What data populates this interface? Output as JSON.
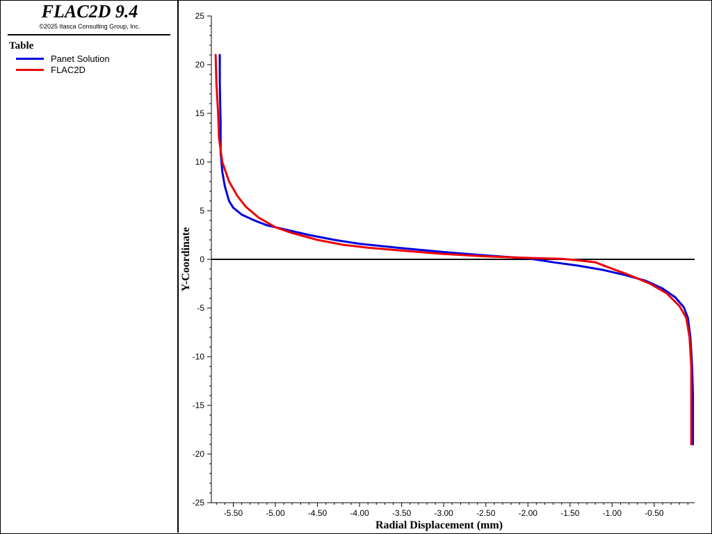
{
  "app": {
    "title": "FLAC2D 9.4",
    "copyright": "©2025 Itasca Consulting Group, Inc."
  },
  "legend": {
    "title": "Table",
    "entries": [
      {
        "label": "Panet Solution",
        "color": "#0000dd"
      },
      {
        "label": "FLAC2D",
        "color": "#ee0000"
      }
    ]
  },
  "chart_data": {
    "type": "line",
    "title": "",
    "xlabel": "Radial Displacement (mm)",
    "ylabel": "Y-Coordinate",
    "xlim": [
      -5.76,
      -0.02
    ],
    "ylim": [
      -25,
      25
    ],
    "xticks": [
      -5.5,
      -5.0,
      -4.5,
      -4.0,
      -3.5,
      -3.0,
      -2.5,
      -2.0,
      -1.5,
      -1.0,
      -0.5
    ],
    "xtick_labels": [
      "-5.50",
      "-5.00",
      "-4.50",
      "-4.00",
      "-3.50",
      "-3.00",
      "-2.50",
      "-2.00",
      "-1.50",
      "-1.00",
      "-0.50"
    ],
    "yticks": [
      25,
      20,
      15,
      10,
      5,
      0,
      -5,
      -10,
      -15,
      -20,
      -25
    ],
    "ytick_labels": [
      "25",
      "20",
      "15",
      "10",
      "5",
      "0",
      "-5",
      "-10",
      "-15",
      "-20",
      "-25"
    ],
    "zero_line": 0,
    "series": [
      {
        "name": "Panet Solution",
        "color": "#0000dd",
        "points": [
          [
            -5.66,
            21.0
          ],
          [
            -5.66,
            18.0
          ],
          [
            -5.65,
            14.0
          ],
          [
            -5.65,
            11.0
          ],
          [
            -5.63,
            9.0
          ],
          [
            -5.6,
            7.5
          ],
          [
            -5.55,
            6.0
          ],
          [
            -5.5,
            5.3
          ],
          [
            -5.4,
            4.6
          ],
          [
            -5.25,
            4.0
          ],
          [
            -5.1,
            3.5
          ],
          [
            -4.9,
            3.1
          ],
          [
            -4.6,
            2.5
          ],
          [
            -4.3,
            2.0
          ],
          [
            -4.0,
            1.6
          ],
          [
            -3.5,
            1.15
          ],
          [
            -3.0,
            0.75
          ],
          [
            -2.5,
            0.4
          ],
          [
            -2.0,
            0.1
          ],
          [
            -1.7,
            -0.3
          ],
          [
            -1.4,
            -0.65
          ],
          [
            -1.1,
            -1.1
          ],
          [
            -0.85,
            -1.6
          ],
          [
            -0.6,
            -2.2
          ],
          [
            -0.4,
            -3.0
          ],
          [
            -0.25,
            -3.9
          ],
          [
            -0.15,
            -4.9
          ],
          [
            -0.1,
            -6.0
          ],
          [
            -0.07,
            -8.0
          ],
          [
            -0.05,
            -11.0
          ],
          [
            -0.04,
            -14.0
          ],
          [
            -0.04,
            -19.0
          ]
        ]
      },
      {
        "name": "FLAC2D",
        "color": "#ee0000",
        "points": [
          [
            -5.71,
            21.0
          ],
          [
            -5.7,
            18.0
          ],
          [
            -5.68,
            15.0
          ],
          [
            -5.67,
            12.5
          ],
          [
            -5.63,
            10.0
          ],
          [
            -5.55,
            8.0
          ],
          [
            -5.45,
            6.5
          ],
          [
            -5.35,
            5.4
          ],
          [
            -5.2,
            4.3
          ],
          [
            -5.0,
            3.3
          ],
          [
            -4.8,
            2.7
          ],
          [
            -4.5,
            2.0
          ],
          [
            -4.2,
            1.5
          ],
          [
            -3.9,
            1.2
          ],
          [
            -3.5,
            0.9
          ],
          [
            -3.0,
            0.55
          ],
          [
            -2.5,
            0.3
          ],
          [
            -2.0,
            0.15
          ],
          [
            -1.6,
            0.05
          ],
          [
            -1.4,
            -0.1
          ],
          [
            -1.2,
            -0.3
          ],
          [
            -1.05,
            -0.8
          ],
          [
            -0.8,
            -1.6
          ],
          [
            -0.55,
            -2.5
          ],
          [
            -0.35,
            -3.5
          ],
          [
            -0.2,
            -4.8
          ],
          [
            -0.12,
            -6.0
          ],
          [
            -0.08,
            -8.0
          ],
          [
            -0.06,
            -11.0
          ],
          [
            -0.06,
            -14.0
          ],
          [
            -0.06,
            -17.0
          ],
          [
            -0.06,
            -19.0
          ]
        ]
      }
    ],
    "zero_line_color": "#000000"
  }
}
